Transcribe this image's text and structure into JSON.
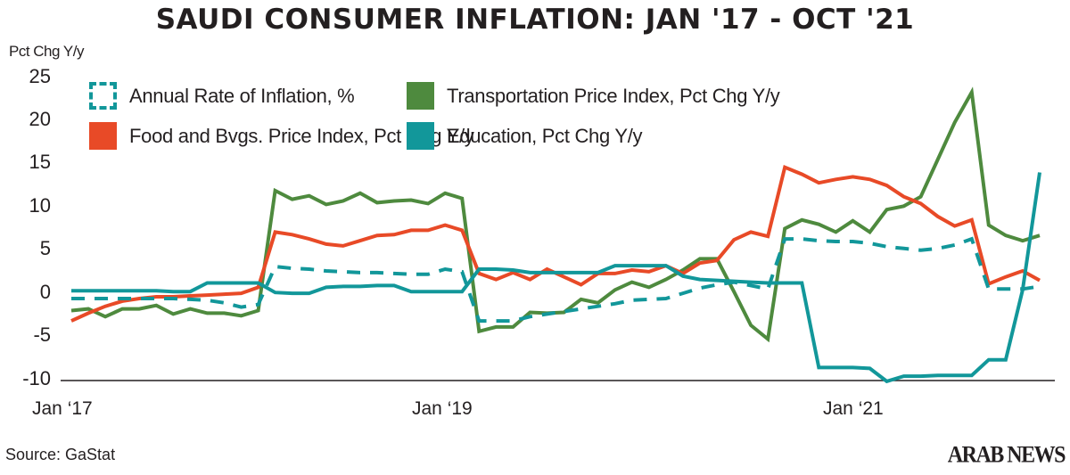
{
  "chart_data": {
    "type": "line",
    "title": "SAUDI CONSUMER INFLATION: JAN '17 - OCT '21",
    "ylabel": "Pct Chg Y/y",
    "ylim": [
      -10,
      25
    ],
    "yticks": [
      "25",
      "20",
      "15",
      "10",
      "5",
      "0",
      "-5",
      "-10"
    ],
    "x_range": [
      "Jan 2017",
      "Oct 2021"
    ],
    "x_frequency": "monthly",
    "xtick_labels": [
      "Jan ‘17",
      "Jan ‘19",
      "Jan ‘21"
    ],
    "grid": false,
    "legend": "top-left",
    "series": [
      {
        "name": "Annual Rate of Inflation, %",
        "color": "#12979a",
        "style": "dashed",
        "values": [
          -0.6,
          -0.6,
          -0.6,
          -0.6,
          -0.6,
          -0.6,
          -0.6,
          -0.7,
          -0.8,
          -1.1,
          -1.6,
          -1.3,
          3.1,
          2.9,
          2.8,
          2.6,
          2.5,
          2.4,
          2.4,
          2.3,
          2.2,
          2.2,
          2.8,
          2.5,
          -3.2,
          -3.2,
          -3.2,
          -2.7,
          -2.4,
          -2.1,
          -1.8,
          -1.5,
          -1.2,
          -0.8,
          -0.7,
          -0.6,
          0.0,
          0.6,
          1.0,
          1.3,
          0.9,
          0.5,
          6.3,
          6.3,
          6.1,
          6.0,
          6.0,
          5.8,
          5.4,
          5.2,
          5.0,
          5.2,
          5.6,
          6.3,
          0.5,
          0.5,
          0.5,
          0.8
        ]
      },
      {
        "name": "Transportation Price Index, Pct Chg Y/y",
        "color": "#4e8a3e",
        "style": "solid",
        "values": [
          -2.0,
          -1.8,
          -2.7,
          -1.8,
          -1.8,
          -1.4,
          -2.4,
          -1.8,
          -2.3,
          -2.3,
          -2.6,
          -2.0,
          11.9,
          10.9,
          11.3,
          10.3,
          10.7,
          11.6,
          10.5,
          10.7,
          10.8,
          10.4,
          11.6,
          11.0,
          -4.4,
          -3.9,
          -3.9,
          -2.2,
          -2.3,
          -2.2,
          -0.7,
          -1.1,
          0.4,
          1.3,
          0.7,
          1.6,
          2.7,
          4.0,
          4.0,
          0.2,
          -3.7,
          -5.3,
          7.5,
          8.5,
          8.0,
          7.1,
          8.4,
          7.1,
          9.7,
          10.1,
          11.2,
          15.5,
          19.8,
          23.3,
          7.9,
          6.7,
          6.1,
          6.7
        ]
      },
      {
        "name": "Food and Bvgs. Price Index, Pct Chg Y/y",
        "color": "#e84a27",
        "style": "solid",
        "values": [
          -3.2,
          -2.3,
          -1.5,
          -0.9,
          -0.6,
          -0.4,
          -0.4,
          -0.3,
          -0.2,
          -0.1,
          0.0,
          0.7,
          7.1,
          6.8,
          6.3,
          5.7,
          5.5,
          6.1,
          6.7,
          6.8,
          7.3,
          7.3,
          7.9,
          7.3,
          2.3,
          1.6,
          2.4,
          1.6,
          2.8,
          1.9,
          1.0,
          2.3,
          2.3,
          2.7,
          2.5,
          3.2,
          2.3,
          3.5,
          3.8,
          6.2,
          7.1,
          6.6,
          14.6,
          13.8,
          12.8,
          13.2,
          13.5,
          13.2,
          12.5,
          11.2,
          10.4,
          8.9,
          7.8,
          8.5,
          1.1,
          1.9,
          2.6,
          1.5
        ]
      },
      {
        "name": "Education, Pct Chg Y/y",
        "color": "#12979a",
        "style": "solid",
        "values": [
          0.3,
          0.3,
          0.3,
          0.3,
          0.3,
          0.3,
          0.2,
          0.2,
          1.2,
          1.2,
          1.2,
          1.2,
          0.1,
          0.0,
          0.0,
          0.7,
          0.8,
          0.8,
          0.9,
          0.9,
          0.2,
          0.2,
          0.2,
          0.2,
          2.8,
          2.8,
          2.7,
          2.4,
          2.4,
          2.4,
          2.4,
          2.4,
          3.2,
          3.2,
          3.2,
          3.2,
          2.0,
          1.6,
          1.5,
          1.4,
          1.3,
          1.2,
          1.2,
          1.2,
          -8.6,
          -8.6,
          -8.6,
          -8.7,
          -10.2,
          -9.6,
          -9.6,
          -9.5,
          -9.5,
          -9.5,
          -7.7,
          -7.7,
          0.4,
          14.0
        ]
      }
    ]
  },
  "source": "Source: GaStat",
  "logo": "ARAB NEWS"
}
